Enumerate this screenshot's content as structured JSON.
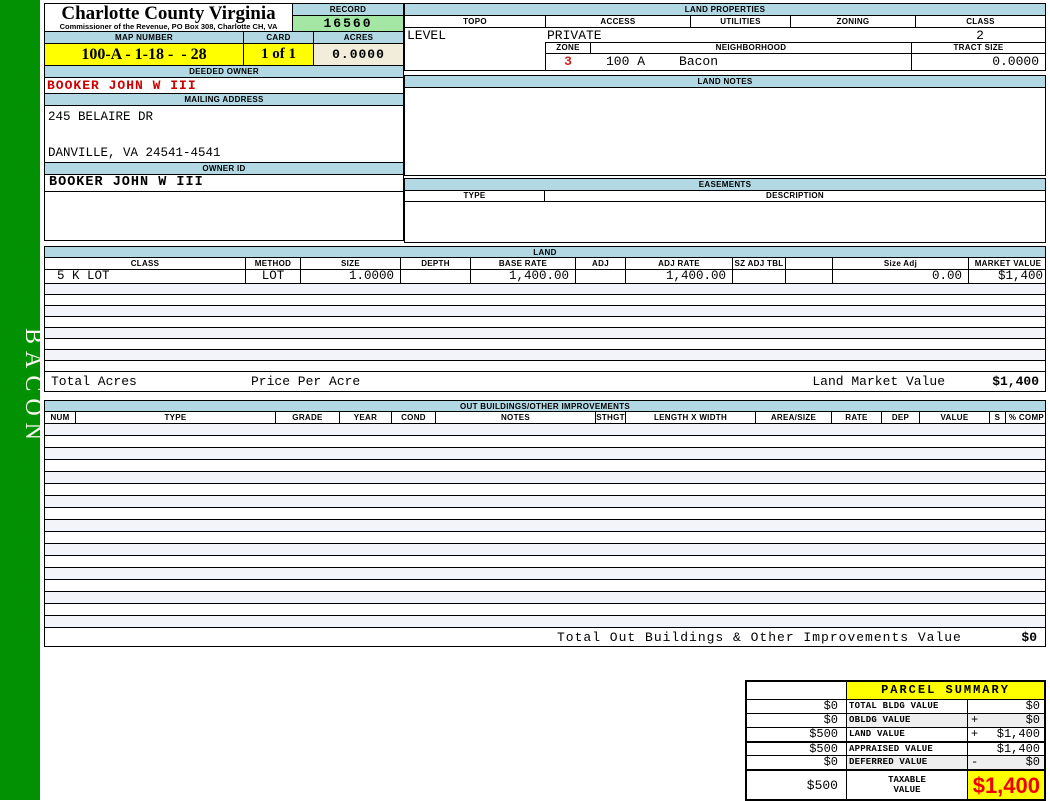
{
  "sidebar": {
    "vertical_label": "BACON"
  },
  "header": {
    "county_title": "Charlotte County Virginia",
    "county_subtitle": "Commissioner of the Revenue, PO Box 308, Charlotte CH, VA",
    "record_label": "RECORD",
    "record_value": "16560",
    "map_number_label": "MAP NUMBER",
    "map_number_value": "100-A - 1-18 -  - 28",
    "card_label": "CARD",
    "card_value": "1 of 1",
    "acres_label": "ACRES",
    "acres_value": "0.0000"
  },
  "owner": {
    "deeded_owner_label": "DEEDED OWNER",
    "deeded_owner": "BOOKER JOHN W III",
    "mailing_address_label": "MAILING ADDRESS",
    "address_line1": "245 BELAIRE DR",
    "address_line2": "",
    "address_line3": "DANVILLE, VA 24541-4541",
    "owner_id_label": "OWNER ID",
    "owner_id": "BOOKER JOHN W III"
  },
  "land_properties": {
    "title": "LAND PROPERTIES",
    "columns": [
      "TOPO",
      "ACCESS",
      "UTILITIES",
      "ZONING",
      "CLASS"
    ],
    "topo": "LEVEL",
    "access": "PRIVATE",
    "utilities": "",
    "zoning": "",
    "class": "2",
    "zone_label": "ZONE",
    "zone": "3",
    "neighborhood_label": "NEIGHBORHOOD",
    "neighborhood_code": "100 A",
    "neighborhood_name": "Bacon",
    "tract_size_label": "TRACT SIZE",
    "tract_size": "0.0000"
  },
  "land_notes": {
    "title": "LAND NOTES",
    "content": ""
  },
  "easements": {
    "title": "EASEMENTS",
    "type_label": "TYPE",
    "description_label": "DESCRIPTION"
  },
  "land": {
    "title": "LAND",
    "columns": [
      "CLASS",
      "METHOD",
      "SIZE",
      "DEPTH",
      "BASE RATE",
      "ADJ",
      "ADJ RATE",
      "SZ ADJ TBL",
      "",
      "Size Adj",
      "MARKET VALUE"
    ],
    "row1": {
      "class": "5 K LOT",
      "method": "LOT",
      "size": "1.0000",
      "depth": "",
      "base_rate": "1,400.00",
      "adj": "",
      "adj_rate": "1,400.00",
      "sz_adj_tbl": "",
      "blank": "",
      "size_adj": "0.00",
      "market_value": "$1,400"
    },
    "empty_row_count": 8,
    "total_acres_label": "Total Acres",
    "price_per_acre_label": "Price Per Acre",
    "land_market_value_label": "Land Market Value",
    "land_market_value": "$1,400"
  },
  "out_buildings": {
    "title": "OUT BUILDINGS/OTHER IMPROVEMENTS",
    "columns": [
      "NUM",
      "TYPE",
      "GRADE",
      "YEAR",
      "COND",
      "NOTES",
      "STHGT",
      "LENGTH X WIDTH",
      "AREA/SIZE",
      "RATE",
      "DEP",
      "VALUE",
      "S",
      "% COMP"
    ],
    "empty_row_count": 17,
    "total_label": "Total Out Buildings & Other Improvements Value",
    "total_value": "$0"
  },
  "parcel_summary": {
    "title": "PARCEL SUMMARY",
    "rows": [
      {
        "prior": "$0",
        "label": "TOTAL BLDG VALUE",
        "op": "",
        "value": "$0"
      },
      {
        "prior": "$0",
        "label": "OBLDG VALUE",
        "op": "+",
        "value": "$0"
      },
      {
        "prior": "$500",
        "label": "LAND VALUE",
        "op": "+",
        "value": "$1,400"
      },
      {
        "prior": "$500",
        "label": "APPRAISED VALUE",
        "op": "",
        "value": "$1,400"
      },
      {
        "prior": "$0",
        "label": "DEFERRED VALUE",
        "op": "-",
        "value": "$0"
      }
    ],
    "taxable": {
      "prior": "$500",
      "label_line1": "TAXABLE",
      "label_line2": "VALUE",
      "value": "$1,400"
    }
  },
  "colors": {
    "sidebar_green": "#029102",
    "header_blue": "#b2d8e4",
    "record_green": "#a4e6a4",
    "highlight_yellow": "#ffff00",
    "acres_cream": "#f1edda",
    "owner_red": "#cc0000",
    "taxable_red": "#ee0000",
    "filler_tint": "#f3f4fa"
  }
}
